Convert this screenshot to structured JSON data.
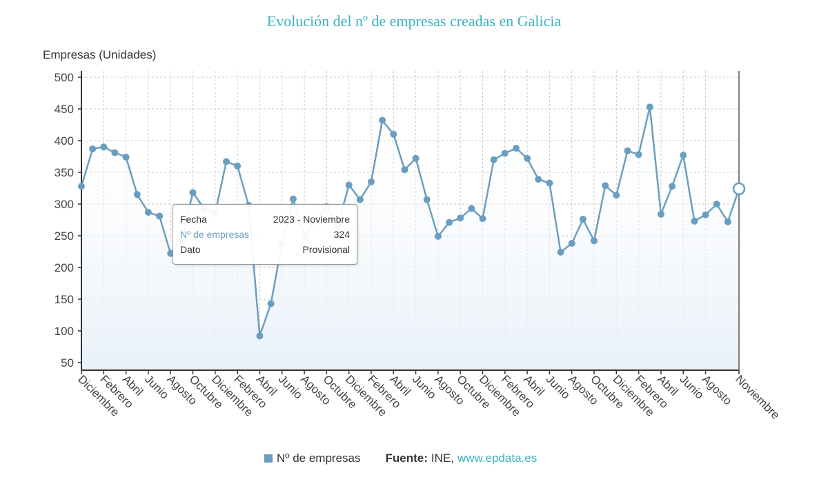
{
  "title": "Evolución del nº de empresas creadas en Galicia",
  "legend": {
    "series_label": "Nº de empresas",
    "source_label": "Fuente:",
    "source_text": "INE,",
    "source_link": "www.epdata.es"
  },
  "tooltip": {
    "rows": [
      {
        "label": "Fecha",
        "value": "2023 - Noviembre"
      },
      {
        "label": "Nº de empresas",
        "value": "324"
      },
      {
        "label": "Dato",
        "value": "Provisional"
      }
    ]
  },
  "colors": {
    "line": "#6a9ec0",
    "title": "#3bb0c0",
    "grid": "#c8c8c8"
  },
  "chart_data": {
    "type": "area",
    "title": "Evolución del nº de empresas creadas en Galicia",
    "xlabel": "",
    "ylabel": "Empresas (Unidades)",
    "ylim": [
      38,
      500
    ],
    "yticks": [
      50,
      100,
      150,
      200,
      250,
      300,
      350,
      400,
      450,
      500
    ],
    "grid": true,
    "legend_position": "bottom",
    "x_tick_labels": [
      "Diciembre",
      "Febrero",
      "Abril",
      "Junio",
      "Agosto",
      "Octubre",
      "Diciembre",
      "Febrero",
      "Abril",
      "Junio",
      "Agosto",
      "Octubre",
      "Diciembre",
      "Febrero",
      "Abril",
      "Junio",
      "Agosto",
      "Octubre",
      "Diciembre",
      "Febrero",
      "Abril",
      "Junio",
      "Agosto",
      "Octubre",
      "Diciembre",
      "Febrero",
      "Abril",
      "Junio",
      "Agosto",
      "Noviembre"
    ],
    "x_tick_index": [
      0,
      2,
      4,
      6,
      8,
      10,
      12,
      14,
      16,
      18,
      20,
      22,
      24,
      26,
      28,
      30,
      32,
      34,
      36,
      38,
      40,
      42,
      44,
      46,
      48,
      50,
      52,
      54,
      56,
      59
    ],
    "series": [
      {
        "name": "Nº de empresas",
        "x": [
          "2018-12",
          "2019-01",
          "2019-02",
          "2019-03",
          "2019-04",
          "2019-05",
          "2019-06",
          "2019-07",
          "2019-08",
          "2019-09",
          "2019-10",
          "2019-11",
          "2019-12",
          "2020-01",
          "2020-02",
          "2020-03",
          "2020-04",
          "2020-05",
          "2020-06",
          "2020-07",
          "2020-08",
          "2020-09",
          "2020-10",
          "2020-11",
          "2020-12",
          "2021-01",
          "2021-02",
          "2021-03",
          "2021-04",
          "2021-05",
          "2021-06",
          "2021-07",
          "2021-08",
          "2021-09",
          "2021-10",
          "2021-11",
          "2021-12",
          "2022-01",
          "2022-02",
          "2022-03",
          "2022-04",
          "2022-05",
          "2022-06",
          "2022-07",
          "2022-08",
          "2022-09",
          "2022-10",
          "2022-11",
          "2022-12",
          "2023-01",
          "2023-02",
          "2023-03",
          "2023-04",
          "2023-05",
          "2023-06",
          "2023-07",
          "2023-08",
          "2023-09",
          "2023-10",
          "2023-11"
        ],
        "values": [
          328,
          387,
          390,
          381,
          374,
          315,
          287,
          281,
          222,
          243,
          318,
          293,
          285,
          367,
          360,
          298,
          92,
          143,
          238,
          308,
          250,
          273,
          296,
          266,
          330,
          307,
          335,
          432,
          410,
          354,
          372,
          307,
          249,
          271,
          278,
          293,
          277,
          370,
          380,
          388,
          372,
          339,
          333,
          224,
          238,
          276,
          242,
          329,
          314,
          384,
          378,
          453,
          284,
          328,
          377,
          273,
          283,
          300,
          272,
          324
        ]
      }
    ],
    "highlighted_index": 59
  }
}
